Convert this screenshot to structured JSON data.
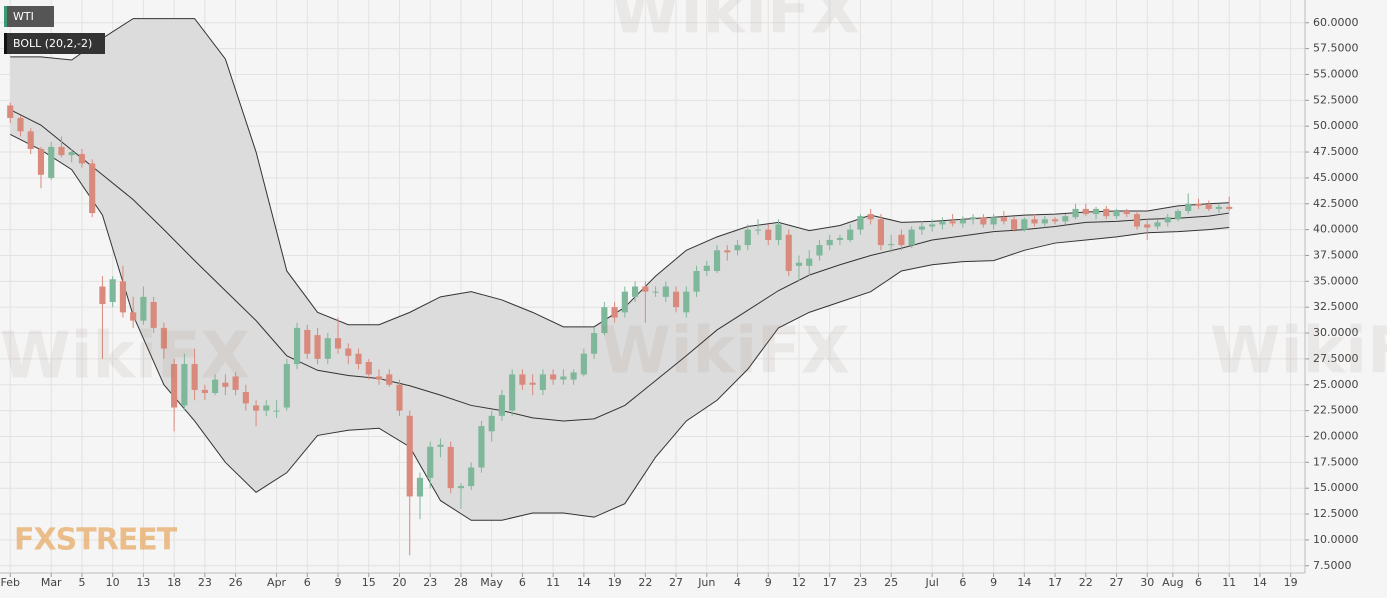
{
  "chart_data": {
    "type": "candlestick",
    "watermark": "WikiFX",
    "logo": "FXSTREET",
    "grid": true,
    "xlim": [
      -1,
      126.4
    ],
    "ylim": [
      6.8,
      62.2
    ],
    "xticks": [
      {
        "value": 0,
        "label": "Feb"
      },
      {
        "value": 4,
        "label": "Mar"
      },
      {
        "value": 7,
        "label": "5"
      },
      {
        "value": 10,
        "label": "10"
      },
      {
        "value": 13,
        "label": "13"
      },
      {
        "value": 16,
        "label": "18"
      },
      {
        "value": 19,
        "label": "23"
      },
      {
        "value": 22,
        "label": "26"
      },
      {
        "value": 26,
        "label": "Apr"
      },
      {
        "value": 29,
        "label": "6"
      },
      {
        "value": 32,
        "label": "9"
      },
      {
        "value": 35,
        "label": "15"
      },
      {
        "value": 38,
        "label": "20"
      },
      {
        "value": 41,
        "label": "23"
      },
      {
        "value": 44,
        "label": "28"
      },
      {
        "value": 47,
        "label": "May"
      },
      {
        "value": 50,
        "label": "6"
      },
      {
        "value": 53,
        "label": "11"
      },
      {
        "value": 56,
        "label": "14"
      },
      {
        "value": 59,
        "label": "19"
      },
      {
        "value": 62,
        "label": "22"
      },
      {
        "value": 65,
        "label": "27"
      },
      {
        "value": 68,
        "label": "Jun"
      },
      {
        "value": 71,
        "label": "4"
      },
      {
        "value": 74,
        "label": "9"
      },
      {
        "value": 77,
        "label": "12"
      },
      {
        "value": 80,
        "label": "17"
      },
      {
        "value": 83,
        "label": "23"
      },
      {
        "value": 86,
        "label": "25"
      },
      {
        "value": 90,
        "label": "Jul"
      },
      {
        "value": 93,
        "label": "6"
      },
      {
        "value": 96,
        "label": "9"
      },
      {
        "value": 99,
        "label": "14"
      },
      {
        "value": 102,
        "label": "17"
      },
      {
        "value": 105,
        "label": "22"
      },
      {
        "value": 108,
        "label": "27"
      },
      {
        "value": 111,
        "label": "30"
      },
      {
        "value": 113.5,
        "label": "Aug"
      },
      {
        "value": 116,
        "label": "6"
      },
      {
        "value": 119,
        "label": "11"
      },
      {
        "value": 122,
        "label": "14"
      },
      {
        "value": 125,
        "label": "19"
      }
    ],
    "yticks": [
      {
        "value": 7.5,
        "label": "7.5000"
      },
      {
        "value": 10,
        "label": "10.0000"
      },
      {
        "value": 12.5,
        "label": "12.5000"
      },
      {
        "value": 15,
        "label": "15.0000"
      },
      {
        "value": 17.5,
        "label": "17.5000"
      },
      {
        "value": 20,
        "label": "20.0000"
      },
      {
        "value": 22.5,
        "label": "22.5000"
      },
      {
        "value": 25,
        "label": "25.0000"
      },
      {
        "value": 27.5,
        "label": "27.5000"
      },
      {
        "value": 30,
        "label": "30.0000"
      },
      {
        "value": 32.5,
        "label": "32.5000"
      },
      {
        "value": 35,
        "label": "35.0000"
      },
      {
        "value": 37.5,
        "label": "37.5000"
      },
      {
        "value": 40,
        "label": "40.0000"
      },
      {
        "value": 42.5,
        "label": "42.5000"
      },
      {
        "value": 45,
        "label": "45.0000"
      },
      {
        "value": 47.5,
        "label": "47.5000"
      },
      {
        "value": 50,
        "label": "50.0000"
      },
      {
        "value": 52.5,
        "label": "52.5000"
      },
      {
        "value": 55,
        "label": "55.0000"
      },
      {
        "value": 57.5,
        "label": "57.5000"
      },
      {
        "value": 60,
        "label": "60.0000"
      }
    ],
    "candles": {
      "name": "WTI",
      "up_color": "#7fb79a",
      "down_color": "#d98a7c",
      "x": [
        0,
        1,
        2,
        3,
        4,
        5,
        6,
        7,
        8,
        9,
        10,
        11,
        12,
        13,
        14,
        15,
        16,
        17,
        18,
        19,
        20,
        21,
        22,
        23,
        24,
        25,
        26,
        27,
        28,
        29,
        30,
        31,
        32,
        33,
        34,
        35,
        36,
        37,
        38,
        39,
        40,
        41,
        42,
        43,
        44,
        45,
        46,
        47,
        48,
        49,
        50,
        51,
        52,
        53,
        54,
        55,
        56,
        57,
        58,
        59,
        60,
        61,
        62,
        63,
        64,
        65,
        66,
        67,
        68,
        69,
        70,
        71,
        72,
        73,
        74,
        75,
        76,
        77,
        78,
        79,
        80,
        81,
        82,
        83,
        84,
        85,
        86,
        87,
        88,
        89,
        90,
        91,
        92,
        93,
        94,
        95,
        96,
        97,
        98,
        99,
        100,
        101,
        102,
        103,
        104,
        105,
        106,
        107,
        108,
        109,
        110,
        111,
        112,
        113,
        114,
        115,
        116,
        117,
        118,
        119
      ],
      "open": [
        52,
        50.8,
        49.5,
        47.8,
        45,
        48,
        47.2,
        47.3,
        46.4,
        34.5,
        33,
        35,
        32,
        31.2,
        33,
        30.5,
        27,
        23,
        27,
        24.5,
        24.2,
        25.2,
        25.8,
        24.3,
        23,
        22.5,
        22.5,
        22.8,
        27,
        30.3,
        29.8,
        27.5,
        29.5,
        28.5,
        28,
        27.2,
        25.8,
        26,
        25,
        22,
        14.2,
        16,
        19,
        19,
        15,
        15.2,
        17,
        20.5,
        22,
        22.5,
        26,
        25.2,
        24.5,
        26,
        25.5,
        25.5,
        26,
        28,
        30,
        32.5,
        32,
        33.5,
        34.5,
        34,
        33.5,
        34,
        32,
        34,
        36,
        36,
        38,
        38,
        38.5,
        40,
        40,
        39,
        39.5,
        36.5,
        36.5,
        37.5,
        38.5,
        39,
        39,
        40,
        41.5,
        41,
        38.5,
        39.5,
        38.5,
        40,
        40.3,
        40.5,
        40.8,
        40.6,
        41,
        41.2,
        40.5,
        41.2,
        41,
        40,
        41,
        40.6,
        41,
        40.8,
        41.2,
        42,
        41.5,
        42,
        41.3,
        41.8,
        41.5,
        40.5,
        40.3,
        40.7,
        41,
        41.8,
        42.5,
        42.4,
        42,
        42.2
      ],
      "high": [
        52.3,
        51,
        49.8,
        48,
        48.5,
        49,
        47.8,
        47.8,
        46.8,
        35.5,
        35.5,
        36.5,
        33.5,
        34.5,
        33.5,
        31,
        27.5,
        28,
        28.5,
        25,
        26,
        26,
        26.2,
        25,
        23.5,
        23.5,
        23.5,
        27.5,
        31,
        30.8,
        30.5,
        30,
        31.5,
        29,
        28.5,
        27.5,
        26.5,
        26.5,
        25.5,
        22.5,
        16.5,
        19.5,
        19.8,
        19.5,
        15.5,
        17.5,
        21.5,
        22.5,
        24.5,
        26.5,
        26.5,
        26,
        26.5,
        26.5,
        26.5,
        26.5,
        28.5,
        30.5,
        33,
        33,
        34.5,
        35,
        35,
        34.5,
        35,
        34.5,
        34.5,
        36.5,
        37,
        38.5,
        38.5,
        39,
        40.5,
        41,
        40.5,
        41,
        40,
        37.5,
        38,
        39,
        39.5,
        39.5,
        40.5,
        41.5,
        42,
        41.5,
        39.5,
        40,
        40.3,
        40.8,
        41,
        41.2,
        41.5,
        41.3,
        41.5,
        41.5,
        41.5,
        41.8,
        41.3,
        41.2,
        41.5,
        41.3,
        41.2,
        41.5,
        42.5,
        42.5,
        42.2,
        42.3,
        42,
        42,
        41.8,
        41,
        41,
        41.5,
        42,
        43.5,
        43,
        42.8,
        42.5,
        43.2
      ],
      "low": [
        50.3,
        49,
        47.3,
        44,
        44.8,
        47,
        46.5,
        46,
        41.2,
        27.5,
        32.5,
        31.5,
        30.5,
        30.8,
        30,
        27.5,
        20.5,
        22.5,
        23.5,
        23.5,
        24,
        24,
        24,
        22.5,
        21,
        22,
        21.8,
        22.5,
        26.5,
        27.5,
        27,
        27,
        28,
        27,
        26.5,
        25.5,
        25,
        24.8,
        22,
        8.5,
        12,
        15,
        18,
        14.5,
        13,
        14.8,
        16.5,
        19.5,
        21.5,
        22,
        24.5,
        24,
        24,
        25,
        25,
        25,
        25.8,
        27.5,
        29.8,
        31,
        31.5,
        33,
        31,
        33.5,
        33,
        32,
        31.5,
        33.5,
        35.5,
        35.8,
        37,
        37.5,
        38,
        39.5,
        38.5,
        38.5,
        35.5,
        35,
        35.5,
        37,
        38,
        38.5,
        38.8,
        39.5,
        40.5,
        38,
        37.8,
        38,
        38.2,
        39.5,
        39.8,
        40,
        40.3,
        40.2,
        40.5,
        40.2,
        40,
        40.5,
        39.8,
        39.8,
        40.3,
        40.2,
        40.5,
        40.5,
        41,
        41.3,
        41,
        41,
        41,
        41.2,
        40,
        39,
        40,
        40.3,
        40.8,
        41.5,
        42,
        41.8,
        41.6,
        41.8
      ],
      "close": [
        50.8,
        49.5,
        47.8,
        45.3,
        48,
        47.2,
        47.5,
        46.4,
        41.6,
        32.8,
        35.2,
        32,
        31.2,
        33.5,
        30.5,
        28.5,
        22.8,
        27,
        24.5,
        24.2,
        25.5,
        24.8,
        24.5,
        23.2,
        22.5,
        23,
        22.5,
        27,
        30.5,
        28,
        27.5,
        29.5,
        28.5,
        27.8,
        27,
        26,
        25.5,
        25,
        22.5,
        14.2,
        16,
        19,
        19.2,
        15,
        15.2,
        17,
        21,
        22,
        24,
        26,
        25,
        25,
        26,
        25.5,
        25.8,
        26.2,
        28,
        30,
        32.5,
        31.5,
        34,
        34.5,
        34,
        34,
        34.5,
        32.5,
        34,
        36,
        36.5,
        38,
        37.8,
        38.5,
        40,
        40,
        39,
        40.5,
        36,
        36.8,
        37.2,
        38.5,
        39,
        39.2,
        40,
        41.3,
        41,
        38.5,
        38.6,
        38.5,
        40,
        40.3,
        40.5,
        40.8,
        40.6,
        41,
        41.2,
        40.5,
        41.2,
        40.8,
        40,
        41,
        40.6,
        41,
        40.8,
        41.3,
        42,
        41.5,
        42,
        41.3,
        41.8,
        41.5,
        40.3,
        40.2,
        40.7,
        41.2,
        41.8,
        42.5,
        42.3,
        42,
        42.2,
        42
      ]
    },
    "bands": {
      "name": "BOLL (20,2,-2)",
      "color": "#333333",
      "fill": "#dcdcdc",
      "x": [
        0,
        3,
        6,
        9,
        12,
        15,
        18,
        21,
        24,
        27,
        30,
        33,
        36,
        39,
        42,
        45,
        48,
        51,
        54,
        57,
        60,
        63,
        66,
        69,
        72,
        75,
        78,
        81,
        84,
        87,
        90,
        93,
        96,
        99,
        102,
        105,
        108,
        111,
        114,
        117,
        119
      ],
      "upper": [
        56.7,
        56.7,
        56.4,
        58.5,
        60.4,
        60.4,
        60.4,
        56.5,
        47.5,
        36,
        32,
        30.8,
        30.8,
        32,
        33.5,
        34,
        33.2,
        32,
        30.6,
        30.6,
        32.5,
        35.5,
        38,
        39.3,
        40.3,
        40.7,
        39.9,
        40.4,
        41.4,
        40.7,
        40.8,
        41,
        41.2,
        41.4,
        41.5,
        41.7,
        41.8,
        41.8,
        42.3,
        42.5,
        42.6
      ],
      "middle": [
        51.6,
        50.1,
        47.7,
        45.3,
        42.9,
        40,
        37,
        34.1,
        31.2,
        27.8,
        26.4,
        25.9,
        25.6,
        24.9,
        24,
        23,
        22.5,
        21.8,
        21.5,
        21.7,
        23,
        25.4,
        27.8,
        30.3,
        32.2,
        34.1,
        35.6,
        36.6,
        37.5,
        38.2,
        39,
        39.4,
        39.8,
        40,
        40.3,
        40.7,
        40.8,
        41,
        41.1,
        41.3,
        41.6
      ],
      "lower": [
        49.2,
        47.7,
        45.8,
        41.4,
        31.7,
        25,
        21.5,
        17.5,
        14.6,
        16.5,
        20.1,
        20.6,
        20.8,
        19,
        13.8,
        11.9,
        11.9,
        12.6,
        12.6,
        12.2,
        13.5,
        18,
        21.5,
        23.5,
        26.5,
        30.5,
        32,
        33,
        34,
        36,
        36.6,
        36.9,
        37,
        38,
        38.7,
        39,
        39.3,
        39.7,
        39.8,
        40,
        40.2
      ]
    }
  }
}
